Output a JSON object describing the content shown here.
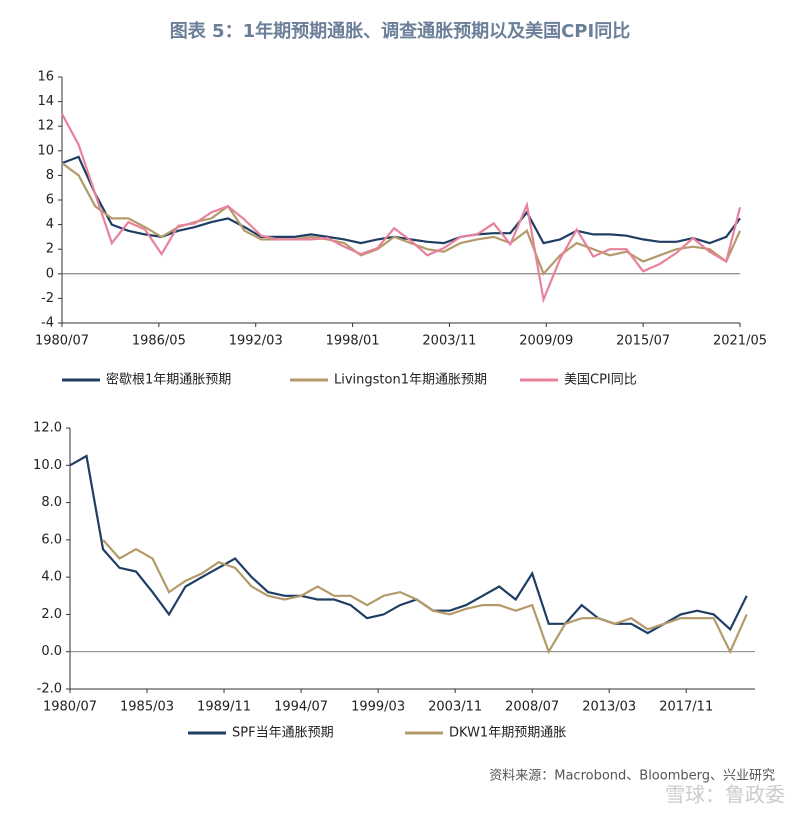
{
  "title": "图表 5：1年期预期通胀、调查通胀预期以及美国CPI同比",
  "source": "资料来源：Macrobond、Bloomberg、兴业研究",
  "watermark": "雪球：鲁政委",
  "chart_data": [
    {
      "type": "line",
      "x": [
        "1980/07",
        "1981/07",
        "1982/07",
        "1983/07",
        "1984/07",
        "1985/07",
        "1986/07",
        "1987/07",
        "1988/07",
        "1989/07",
        "1990/07",
        "1991/07",
        "1992/07",
        "1993/07",
        "1994/07",
        "1995/07",
        "1996/07",
        "1997/07",
        "1998/07",
        "1999/07",
        "2000/07",
        "2001/07",
        "2002/07",
        "2003/07",
        "2004/07",
        "2005/07",
        "2006/07",
        "2007/07",
        "2008/07",
        "2009/07",
        "2010/07",
        "2011/07",
        "2012/07",
        "2013/07",
        "2014/07",
        "2015/07",
        "2016/07",
        "2017/07",
        "2018/07",
        "2019/07",
        "2020/07",
        "2021/05"
      ],
      "xlim": [
        "1980/07",
        "2021/05"
      ],
      "xticks": [
        "1980/07",
        "1986/05",
        "1992/03",
        "1998/01",
        "2003/11",
        "2009/09",
        "2015/07",
        "2021/05"
      ],
      "ylim": [
        -4,
        16
      ],
      "yticks": [
        -4,
        -2,
        0,
        2,
        4,
        6,
        8,
        10,
        12,
        14,
        16
      ],
      "series": [
        {
          "name": "密歇根1年期通胀预期",
          "color": "#1f3e64",
          "values": [
            9,
            9.5,
            6.5,
            4,
            3.5,
            3.2,
            3,
            3.5,
            3.8,
            4.2,
            4.5,
            3.8,
            3,
            3,
            3,
            3.2,
            3,
            2.8,
            2.5,
            2.8,
            3,
            2.8,
            2.6,
            2.5,
            3,
            3.2,
            3.3,
            3.3,
            5,
            2.5,
            2.8,
            3.5,
            3.2,
            3.2,
            3.1,
            2.8,
            2.6,
            2.6,
            2.9,
            2.5,
            3,
            4.5
          ]
        },
        {
          "name": "Livingston1年期通胀预期",
          "color": "#b49a6a",
          "values": [
            9,
            8,
            5.5,
            4.5,
            4.5,
            3.8,
            3,
            3.8,
            4.2,
            4.5,
            5.5,
            3.5,
            2.8,
            2.8,
            2.8,
            3,
            2.8,
            2.5,
            1.5,
            2,
            3,
            2.5,
            2,
            1.8,
            2.5,
            2.8,
            3,
            2.5,
            3.5,
            0,
            1.5,
            2.5,
            2,
            1.5,
            1.8,
            1,
            1.5,
            2,
            2.2,
            2,
            1,
            3.5
          ]
        },
        {
          "name": "美国CPI同比",
          "color": "#e8819c",
          "values": [
            13,
            10.5,
            6.5,
            2.5,
            4.2,
            3.6,
            1.6,
            3.9,
            4.1,
            5,
            5.5,
            4.4,
            3.1,
            2.8,
            2.8,
            2.8,
            2.9,
            2.2,
            1.6,
            2.1,
            3.7,
            2.7,
            1.5,
            2.1,
            3,
            3.2,
            4.1,
            2.4,
            5.6,
            -2.1,
            1.2,
            3.6,
            1.4,
            2,
            2,
            0.2,
            0.8,
            1.7,
            2.9,
            1.8,
            1,
            5.4
          ]
        }
      ]
    },
    {
      "type": "line",
      "x": [
        "1980/07",
        "1981/07",
        "1982/07",
        "1983/07",
        "1984/07",
        "1985/07",
        "1986/07",
        "1987/07",
        "1988/07",
        "1989/07",
        "1990/07",
        "1991/07",
        "1992/07",
        "1993/07",
        "1994/07",
        "1995/07",
        "1996/07",
        "1997/07",
        "1998/07",
        "1999/07",
        "2000/07",
        "2001/07",
        "2002/07",
        "2003/07",
        "2004/07",
        "2005/07",
        "2006/07",
        "2007/07",
        "2008/07",
        "2009/07",
        "2010/07",
        "2011/07",
        "2012/07",
        "2013/07",
        "2014/07",
        "2015/07",
        "2016/07",
        "2017/07",
        "2018/07",
        "2019/07",
        "2020/07",
        "2021/07"
      ],
      "xlim": [
        "1980/07",
        "2022/01"
      ],
      "xticks": [
        "1980/07",
        "1985/03",
        "1989/11",
        "1994/07",
        "1999/03",
        "2003/11",
        "2008/07",
        "2013/03",
        "2017/11"
      ],
      "ylim": [
        -2,
        12
      ],
      "yticks": [
        {
          "value": -2,
          "label": "-2.0"
        },
        {
          "value": 0,
          "label": "0.0"
        },
        {
          "value": 2,
          "label": "2.0"
        },
        {
          "value": 4,
          "label": "4.0"
        },
        {
          "value": 6,
          "label": "6.0"
        },
        {
          "value": 8,
          "label": "8.0"
        },
        {
          "value": 10,
          "label": "10.0"
        },
        {
          "value": 12,
          "label": "12.0"
        }
      ],
      "series": [
        {
          "name": "SPF当年通胀预期",
          "color": "#1f3e64",
          "values": [
            10,
            10.5,
            5.5,
            4.5,
            4.3,
            3.2,
            2,
            3.5,
            4,
            4.5,
            5,
            4,
            3.2,
            3,
            3,
            2.8,
            2.8,
            2.5,
            1.8,
            2,
            2.5,
            2.8,
            2.2,
            2.2,
            2.5,
            3,
            3.5,
            2.8,
            4.2,
            1.5,
            1.5,
            2.5,
            1.8,
            1.5,
            1.5,
            1,
            1.5,
            2,
            2.2,
            2,
            1.2,
            3
          ]
        },
        {
          "name": "DKW1年期预期通胀",
          "color": "#b49a6a",
          "values": [
            null,
            null,
            6,
            5,
            5.5,
            5,
            3.2,
            3.8,
            4.2,
            4.8,
            4.5,
            3.5,
            3,
            2.8,
            3,
            3.5,
            3,
            3,
            2.5,
            3,
            3.2,
            2.8,
            2.2,
            2,
            2.3,
            2.5,
            2.5,
            2.2,
            2.5,
            0,
            1.5,
            1.8,
            1.8,
            1.5,
            1.8,
            1.2,
            1.5,
            1.8,
            1.8,
            1.8,
            0,
            2
          ]
        }
      ]
    }
  ]
}
